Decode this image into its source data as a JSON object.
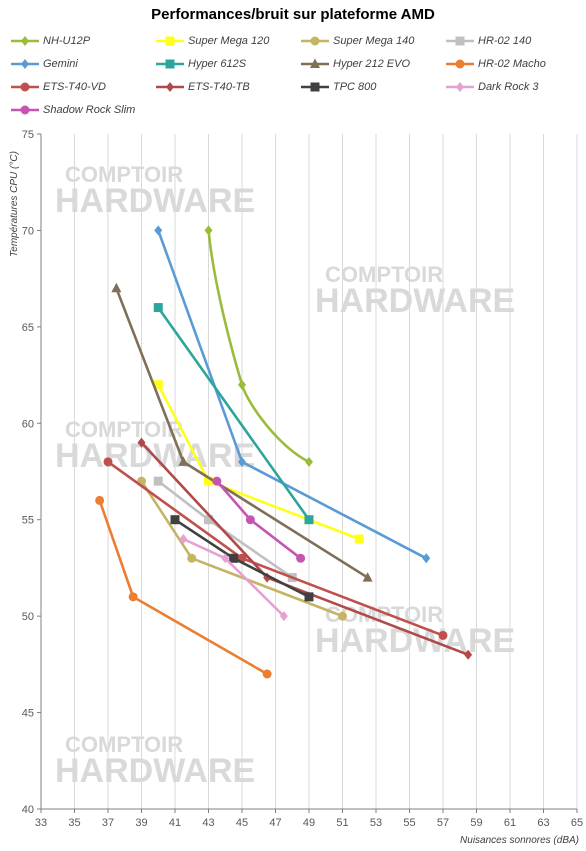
{
  "chart_data": {
    "type": "line",
    "title": "Performances/bruit  sur plateforme AMD",
    "xlabel": "Nuisances sonnores (dBA)",
    "ylabel": "Températures  CPU (°C)",
    "xlim": [
      33,
      65
    ],
    "ylim": [
      40,
      75
    ],
    "xticks": [
      33,
      35,
      37,
      39,
      41,
      43,
      45,
      47,
      49,
      51,
      53,
      55,
      57,
      59,
      61,
      63,
      65
    ],
    "yticks": [
      40,
      45,
      50,
      55,
      60,
      65,
      70,
      75
    ],
    "grid": "vertical",
    "legend_position": "top",
    "series": [
      {
        "name": "NH-U12P",
        "color": "#9bbb3b",
        "marker": "diamond",
        "smooth": true,
        "points": [
          [
            43,
            70
          ],
          [
            45,
            62
          ],
          [
            49,
            58
          ]
        ]
      },
      {
        "name": "Super Mega 120",
        "color": "#ffff1a",
        "marker": "square",
        "points": [
          [
            40,
            62
          ],
          [
            43,
            57
          ],
          [
            52,
            54
          ]
        ]
      },
      {
        "name": "Super Mega 140",
        "color": "#c4b464",
        "marker": "circle",
        "points": [
          [
            39,
            57
          ],
          [
            42,
            53
          ],
          [
            51,
            50
          ]
        ]
      },
      {
        "name": "HR-02 140",
        "color": "#c0c0c0",
        "marker": "square",
        "points": [
          [
            40,
            57
          ],
          [
            43,
            55
          ],
          [
            48,
            52
          ]
        ]
      },
      {
        "name": "Gemini",
        "color": "#5b9bd5",
        "marker": "diamond",
        "points": [
          [
            40,
            70
          ],
          [
            45,
            58
          ],
          [
            56,
            53
          ]
        ]
      },
      {
        "name": "Hyper 612S",
        "color": "#2ca59c",
        "marker": "square",
        "points": [
          [
            40,
            66
          ],
          [
            49,
            55
          ]
        ]
      },
      {
        "name": "Hyper 212 EVO",
        "color": "#7f6f56",
        "marker": "triangle",
        "points": [
          [
            37.5,
            67
          ],
          [
            41.5,
            58
          ],
          [
            52.5,
            52
          ]
        ]
      },
      {
        "name": "HR-02 Macho",
        "color": "#ed7d31",
        "marker": "circle",
        "points": [
          [
            36.5,
            56
          ],
          [
            38.5,
            51
          ],
          [
            46.5,
            47
          ]
        ]
      },
      {
        "name": "ETS-T40-VD",
        "color": "#c0504d",
        "marker": "circle",
        "points": [
          [
            37,
            58
          ],
          [
            45,
            53
          ],
          [
            57,
            49
          ]
        ]
      },
      {
        "name": "ETS-T40-TB",
        "color": "#b04a4a",
        "marker": "diamond",
        "points": [
          [
            39,
            59
          ],
          [
            46.5,
            52
          ],
          [
            58.5,
            48
          ]
        ]
      },
      {
        "name": "TPC 800",
        "color": "#404040",
        "marker": "square",
        "points": [
          [
            41,
            55
          ],
          [
            44.5,
            53
          ],
          [
            49,
            51
          ]
        ]
      },
      {
        "name": "Dark Rock 3",
        "color": "#e6a0d2",
        "marker": "diamond",
        "points": [
          [
            41.5,
            54
          ],
          [
            44,
            53
          ],
          [
            47.5,
            50
          ]
        ]
      },
      {
        "name": "Shadow Rock Slim",
        "color": "#c655b1",
        "marker": "circle",
        "points": [
          [
            43.5,
            57
          ],
          [
            45.5,
            55
          ],
          [
            48.5,
            53
          ]
        ]
      }
    ],
    "legend_columns": 4
  }
}
